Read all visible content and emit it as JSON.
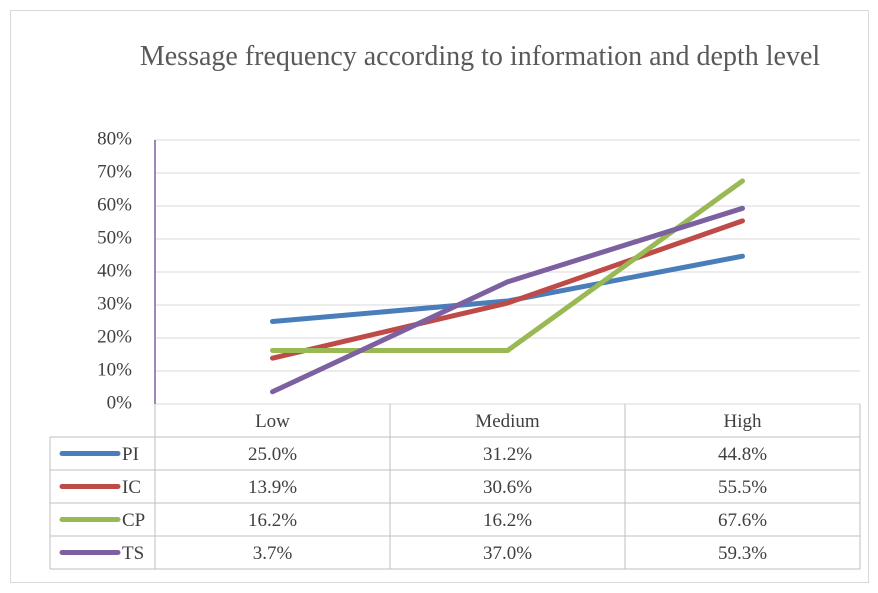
{
  "chart_data": {
    "type": "line",
    "title": "Message frequency according to information and depth level",
    "categories": [
      "Low",
      "Medium",
      "High"
    ],
    "ylim": [
      0,
      80
    ],
    "yticks": [
      {
        "value": 0,
        "label": "0%"
      },
      {
        "value": 10,
        "label": "10%"
      },
      {
        "value": 20,
        "label": "20%"
      },
      {
        "value": 30,
        "label": "30%"
      },
      {
        "value": 40,
        "label": "40%"
      },
      {
        "value": 50,
        "label": "50%"
      },
      {
        "value": 60,
        "label": "60%"
      },
      {
        "value": 70,
        "label": "70%"
      },
      {
        "value": 80,
        "label": "80%"
      }
    ],
    "grid": true,
    "series": [
      {
        "name": "PI",
        "color": "#4a7ebb",
        "values": [
          25.0,
          31.2,
          44.8
        ],
        "value_labels": [
          "25.0%",
          "31.2%",
          "44.8%"
        ]
      },
      {
        "name": "IC",
        "color": "#be4b48",
        "values": [
          13.9,
          30.6,
          55.5
        ],
        "value_labels": [
          "13.9%",
          "30.6%",
          "55.5%"
        ]
      },
      {
        "name": "CP",
        "color": "#98b954",
        "values": [
          16.2,
          16.2,
          67.6
        ],
        "value_labels": [
          "16.2%",
          "16.2%",
          "67.6%"
        ]
      },
      {
        "name": "TS",
        "color": "#7d60a0",
        "values": [
          3.7,
          37.0,
          59.3
        ],
        "value_labels": [
          "3.7%",
          "37.0%",
          "59.3%"
        ]
      }
    ]
  }
}
